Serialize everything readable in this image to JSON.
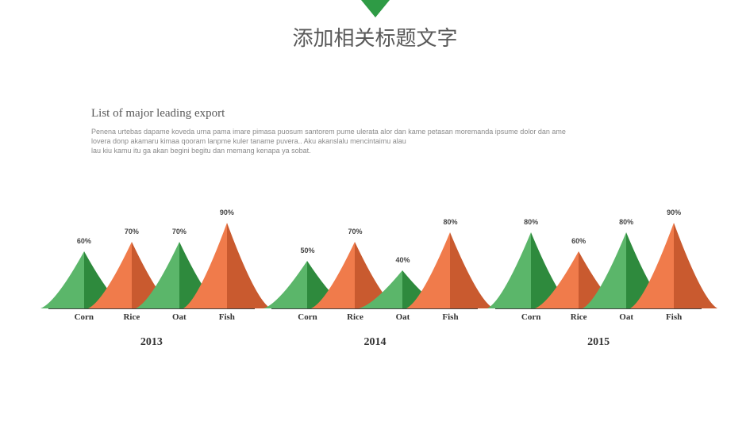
{
  "header": {
    "marker_color": "#2e9b45",
    "title": "添加相关标题文字",
    "title_fontsize": 26,
    "title_color": "#595959"
  },
  "intro": {
    "subtitle": "List of major leading export",
    "subtitle_fontsize": 15,
    "subtitle_color": "#595959",
    "body": "Penena urtebas dapame koveda urna pama imare pimasa puosum santorem pume ulerata alor dan kame petasan moremanda ipsume dolor dan ame\nlovera donp akamaru kimaa qooram lanpme kuler taname puvera.. Aku akanslalu mencintaimu alau\nlau kiu kamu itu ga akan begini begitu dan memang  kenapa ya sobat.",
    "body_fontsize": 9,
    "body_color": "#8a8a8a"
  },
  "chart": {
    "type": "peak-area",
    "categories": [
      "Corn",
      "Rice",
      "Oat",
      "Fish"
    ],
    "category_fontsize": 11,
    "max_value": 100,
    "peak_height_max": 120,
    "peak_half_width": 55,
    "peak_centers": [
      45,
      105,
      165,
      225
    ],
    "value_label_fontsize": 9,
    "year_fontsize": 14,
    "axis_color": "#444444",
    "colors": {
      "green_light": "#5bb66a",
      "green_dark": "#2e8a3d",
      "orange_light": "#f07b4b",
      "orange_dark": "#c95a2f"
    },
    "color_map": [
      "green",
      "orange",
      "green",
      "orange"
    ],
    "groups": [
      {
        "year": "2013",
        "values": [
          60,
          70,
          70,
          90
        ]
      },
      {
        "year": "2014",
        "values": [
          50,
          70,
          40,
          80
        ]
      },
      {
        "year": "2015",
        "values": [
          80,
          60,
          80,
          90
        ]
      }
    ]
  }
}
